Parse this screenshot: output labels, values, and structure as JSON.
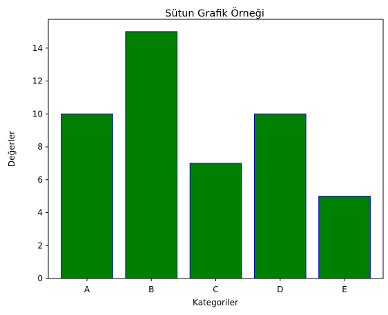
{
  "chart_data": {
    "type": "bar",
    "title": "Sütun Grafik Örneği",
    "xlabel": "Kategoriler",
    "ylabel": "Değerler",
    "categories": [
      "A",
      "B",
      "C",
      "D",
      "E"
    ],
    "values": [
      10,
      15,
      7,
      10,
      5
    ],
    "ylim": [
      0,
      15.75
    ],
    "yticks": [
      0,
      2,
      4,
      6,
      8,
      10,
      12,
      14
    ],
    "grid": false,
    "bar_color": "#008000",
    "edge_color": "#0000cc"
  }
}
